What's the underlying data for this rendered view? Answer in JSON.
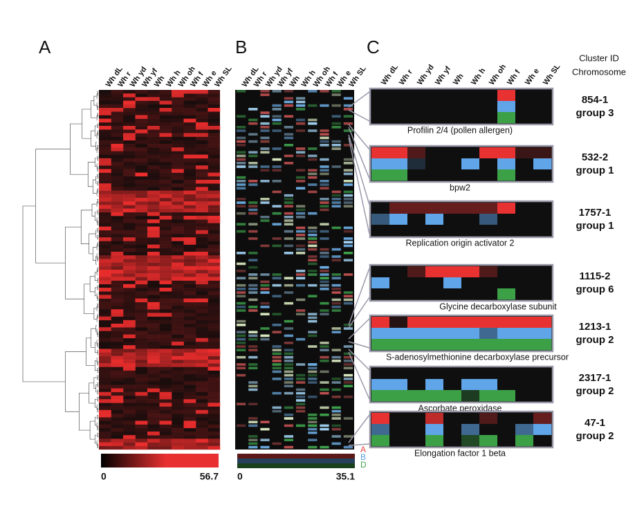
{
  "panels": [
    "A",
    "B",
    "C"
  ],
  "columns": [
    "Wh dL",
    "Wh r",
    "Wh yd",
    "Wh yf",
    "Wh",
    "Wh h",
    "Wh oh",
    "Wh f",
    "Wh e",
    "Wh SL"
  ],
  "header": {
    "cluster_id": "Cluster ID",
    "chromosome": "Chromosome"
  },
  "colorbars": {
    "A": {
      "min": 0,
      "max": 56.7
    },
    "B": {
      "min": 0,
      "max": 35.1
    }
  },
  "legend": [
    "A",
    "B",
    "D"
  ],
  "clusters": [
    {
      "id": "854-1",
      "group": "group 3",
      "gene": "Profilin 2/4 (pollen allergen)",
      "rows": [
        [
          0,
          0,
          0,
          0,
          0,
          0,
          0,
          1,
          0,
          0
        ],
        [
          0,
          0,
          0,
          0,
          0,
          0,
          0,
          1,
          0,
          0
        ],
        [
          0,
          0,
          0,
          0,
          0,
          0,
          0,
          1,
          0,
          0
        ]
      ]
    },
    {
      "id": "532-2",
      "group": "group 1",
      "gene": "bpw2",
      "rows": [
        [
          1,
          1,
          0.3,
          0,
          0,
          0,
          1,
          1,
          0.2,
          0.2
        ],
        [
          1,
          1,
          0.2,
          0,
          0,
          1,
          0,
          1,
          0,
          1
        ],
        [
          1,
          1,
          0,
          0,
          0,
          0,
          0,
          1,
          0,
          0
        ]
      ]
    },
    {
      "id": "1757-1",
      "group": "group 1",
      "gene": "Replication origin activator 2",
      "rows": [
        [
          0,
          0.4,
          0.4,
          0.4,
          0.4,
          0.4,
          0.4,
          1,
          0,
          0
        ],
        [
          0.5,
          1,
          0,
          1,
          0,
          0,
          0.5,
          0,
          0,
          0
        ],
        [
          0,
          0,
          0,
          0,
          0,
          0,
          0,
          0,
          0,
          0
        ]
      ]
    },
    {
      "id": "1115-2",
      "group": "group 6",
      "gene": "Glycine decarboxylase subunit",
      "rows": [
        [
          0,
          0,
          0.3,
          1,
          1,
          1,
          0.3,
          0,
          0,
          0
        ],
        [
          1,
          0,
          0,
          0,
          1,
          0,
          0,
          0,
          0,
          0
        ],
        [
          0,
          0,
          0,
          0,
          0,
          0,
          0,
          1,
          0,
          0
        ]
      ]
    },
    {
      "id": "1213-1",
      "group": "group 2",
      "gene": "S-adenosylmethionine decarboxylase precursor",
      "rows": [
        [
          1,
          0.1,
          1,
          1,
          1,
          1,
          1,
          1,
          1,
          1
        ],
        [
          1,
          1,
          1,
          1,
          1,
          1,
          0.6,
          1,
          1,
          1
        ],
        [
          1,
          1,
          1,
          1,
          1,
          1,
          1,
          1,
          1,
          1
        ]
      ]
    },
    {
      "id": "2317-1",
      "group": "group 2",
      "gene": "Ascorbate peroxidase",
      "rows": [
        [
          0,
          0,
          0,
          0,
          0,
          0,
          0,
          0,
          0,
          0
        ],
        [
          1,
          1,
          0,
          1,
          0,
          1,
          1,
          0,
          0,
          0
        ],
        [
          1,
          1,
          1,
          1,
          1,
          0.3,
          1,
          1,
          0,
          0
        ]
      ]
    },
    {
      "id": "47-1",
      "group": "group 2",
      "gene": "Elongation factor 1 beta",
      "rows": [
        [
          1,
          0,
          0,
          0.8,
          0,
          0,
          0.3,
          0,
          0,
          0.4
        ],
        [
          0.6,
          0,
          0,
          1,
          0,
          0.6,
          0,
          0,
          0.6,
          1
        ],
        [
          1,
          0,
          0,
          1,
          0,
          0.4,
          1,
          0,
          1,
          0
        ]
      ]
    }
  ]
}
